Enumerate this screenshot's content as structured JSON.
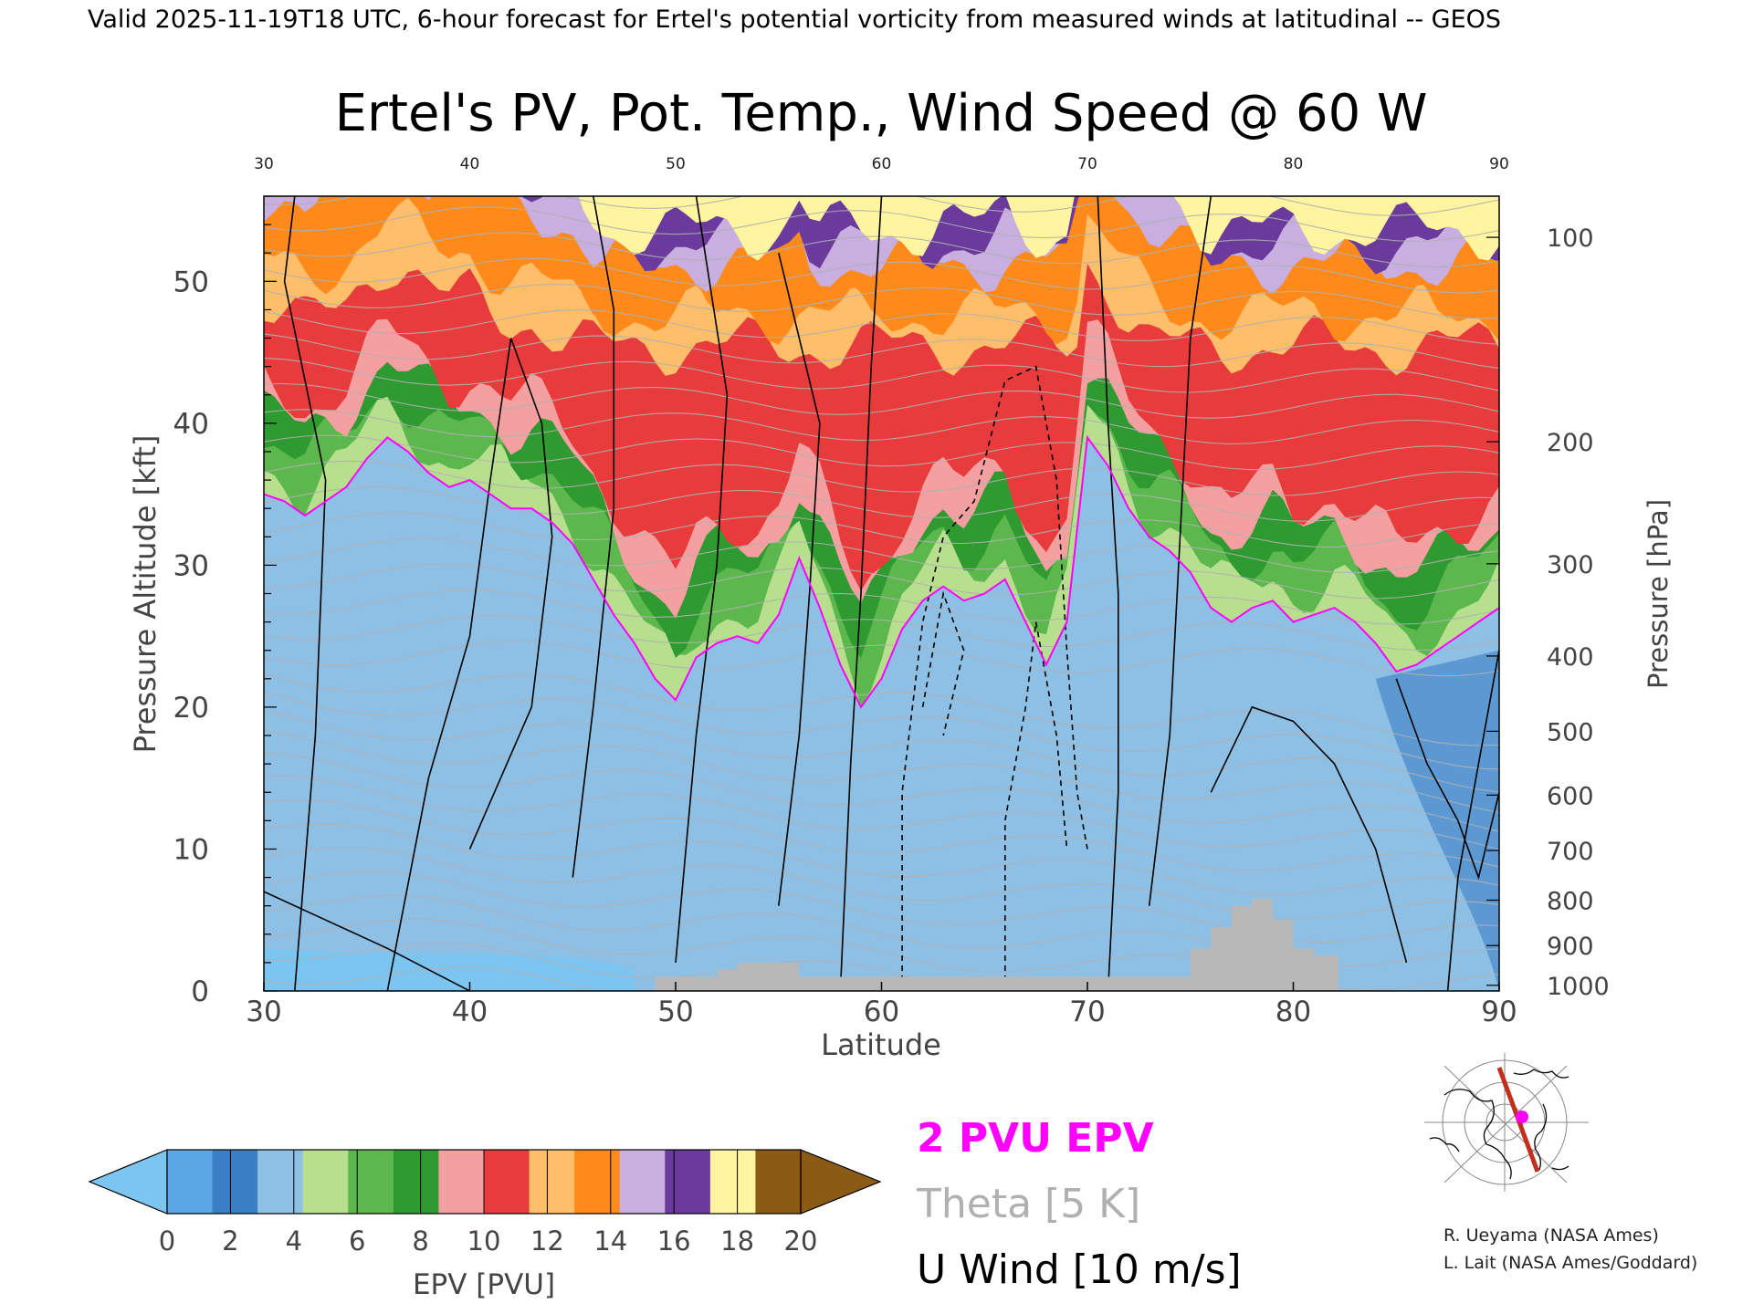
{
  "header": {
    "valid_line": "Valid 2025-11-19T18 UTC, 6-hour forecast for Ertel's potential vorticity from measured winds at latitudinal -- GEOS"
  },
  "chart_data": {
    "type": "heatmap",
    "title": "Ertel's PV, Pot. Temp., Wind Speed @ 60 W",
    "xlabel": "Latitude",
    "ylabel_left": "Pressure Altitude [kft]",
    "ylabel_right": "Pressure [hPa]",
    "xlim": [
      30,
      90
    ],
    "ylim_kft": [
      0,
      56
    ],
    "x_ticks": [
      30,
      40,
      50,
      60,
      70,
      80,
      90
    ],
    "y_ticks_kft": [
      0,
      10,
      20,
      30,
      40,
      50
    ],
    "pressure_ticks": [
      {
        "hPa": "100",
        "kft": 53.1
      },
      {
        "hPa": "200",
        "kft": 38.7
      },
      {
        "hPa": "300",
        "kft": 30.1
      },
      {
        "hPa": "400",
        "kft": 23.6
      },
      {
        "hPa": "500",
        "kft": 18.3
      },
      {
        "hPa": "600",
        "kft": 13.8
      },
      {
        "hPa": "700",
        "kft": 9.9
      },
      {
        "hPa": "800",
        "kft": 6.4
      },
      {
        "hPa": "900",
        "kft": 3.2
      },
      {
        "hPa": "1000",
        "kft": 0.4
      }
    ],
    "tropopause_2pvu_kft": [
      [
        30,
        35
      ],
      [
        31,
        34.5
      ],
      [
        32,
        33.5
      ],
      [
        33,
        34.5
      ],
      [
        34,
        35.5
      ],
      [
        35,
        37.5
      ],
      [
        36,
        39
      ],
      [
        37,
        38
      ],
      [
        38,
        36.5
      ],
      [
        39,
        35.5
      ],
      [
        40,
        36
      ],
      [
        41,
        35
      ],
      [
        42,
        34
      ],
      [
        43,
        34
      ],
      [
        44,
        33
      ],
      [
        45,
        31.5
      ],
      [
        46,
        29
      ],
      [
        47,
        26.5
      ],
      [
        48,
        24.5
      ],
      [
        49,
        22
      ],
      [
        50,
        20.5
      ],
      [
        51,
        23.5
      ],
      [
        52,
        24.5
      ],
      [
        53,
        25
      ],
      [
        54,
        24.5
      ],
      [
        55,
        26.5
      ],
      [
        56,
        30.5
      ],
      [
        57,
        27
      ],
      [
        58,
        23
      ],
      [
        59,
        20
      ],
      [
        60,
        22
      ],
      [
        61,
        25.5
      ],
      [
        62,
        27.5
      ],
      [
        63,
        28.5
      ],
      [
        64,
        27.5
      ],
      [
        65,
        28
      ],
      [
        66,
        29
      ],
      [
        67,
        26
      ],
      [
        68,
        23
      ],
      [
        69,
        26
      ],
      [
        70,
        39
      ],
      [
        71,
        37
      ],
      [
        72,
        34
      ],
      [
        73,
        32
      ],
      [
        74,
        31
      ],
      [
        75,
        29.5
      ],
      [
        76,
        27
      ],
      [
        77,
        26
      ],
      [
        78,
        27
      ],
      [
        79,
        27.5
      ],
      [
        80,
        26
      ],
      [
        81,
        26.5
      ],
      [
        82,
        27
      ],
      [
        83,
        26
      ],
      [
        84,
        24.5
      ],
      [
        85,
        22.5
      ],
      [
        86,
        23
      ],
      [
        87,
        24
      ],
      [
        88,
        25
      ],
      [
        89,
        26
      ],
      [
        90,
        27
      ]
    ],
    "terrain_kft": [
      [
        49,
        1
      ],
      [
        50,
        1
      ],
      [
        51,
        1
      ],
      [
        52,
        1.5
      ],
      [
        53,
        2
      ],
      [
        54,
        2
      ],
      [
        55,
        2
      ],
      [
        56,
        1
      ],
      [
        60,
        1
      ],
      [
        65,
        1
      ],
      [
        70,
        1
      ],
      [
        72,
        1
      ],
      [
        74,
        1
      ],
      [
        75,
        3
      ],
      [
        76,
        4.5
      ],
      [
        77,
        6
      ],
      [
        78,
        6.5
      ],
      [
        79,
        5
      ],
      [
        80,
        3
      ],
      [
        81,
        2.5
      ],
      [
        82,
        2.5
      ],
      [
        82.2,
        0
      ]
    ],
    "colorbar": {
      "label": "EPV [PVU]",
      "tick_labels": [
        "0",
        "2",
        "4",
        "6",
        "8",
        "10",
        "12",
        "14",
        "16",
        "18",
        "20"
      ],
      "colors": [
        "#5aa8e6",
        "#3a7fc4",
        "#8ec0e6",
        "#b8df8e",
        "#5cb84c",
        "#2e9a30",
        "#f4a0a0",
        "#e83c3c",
        "#ffbe6a",
        "#ff8a1c",
        "#c9aee0",
        "#6a3a9c",
        "#fff4a0",
        "#8b5a14"
      ],
      "under_color": "#7cc5f0",
      "over_color": "#8b5a14"
    },
    "legend": {
      "epv_line": "2 PVU EPV",
      "theta_line": "Theta [5 K]",
      "wind_line": "U Wind [10 m/s]",
      "epv_color": "#ff00ff",
      "theta_color": "#b0b0b0",
      "wind_color": "#000000"
    },
    "credits": [
      "R. Ueyama (NASA Ames)",
      "L. Lait (NASA Ames/Goddard)"
    ]
  }
}
